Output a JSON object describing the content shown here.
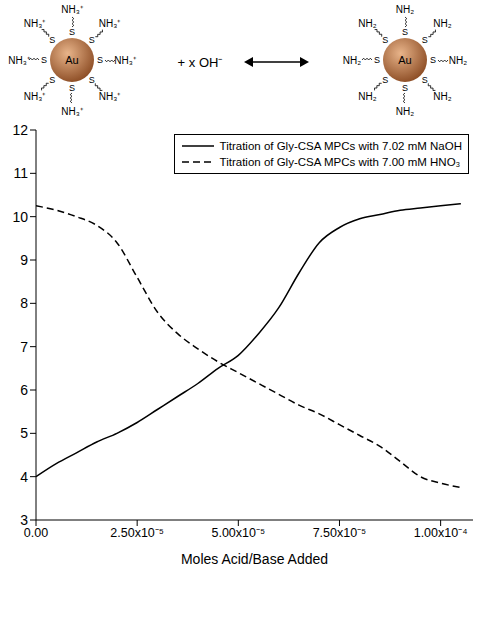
{
  "scheme": {
    "reactant": {
      "core": "Au",
      "anchor": "S",
      "end_group": "NH₃⁺"
    },
    "reagent": "+ x OH⁻",
    "product": {
      "core": "Au",
      "anchor": "S",
      "end_group": "NH₂"
    }
  },
  "chart_data": {
    "type": "line",
    "x": [
      0,
      5e-06,
      1e-05,
      1.5e-05,
      2e-05,
      2.5e-05,
      3e-05,
      3.5e-05,
      4e-05,
      4.5e-05,
      5e-05,
      5.5e-05,
      6e-05,
      6.5e-05,
      7e-05,
      7.5e-05,
      8e-05,
      8.5e-05,
      9e-05,
      9.5e-05,
      0.0001,
      0.000105
    ],
    "series": [
      {
        "name": "Titration of Gly-CSA MPCs with 7.02 mM NaOH",
        "color": "#000000",
        "line_style": "solid",
        "values": [
          4.0,
          4.3,
          4.55,
          4.8,
          5.0,
          5.25,
          5.55,
          5.85,
          6.15,
          6.5,
          6.8,
          7.3,
          7.9,
          8.7,
          9.4,
          9.75,
          9.95,
          10.05,
          10.15,
          10.2,
          10.25,
          10.3
        ]
      },
      {
        "name": "Titration of Gly-CSA MPCs with 7.00 mM HNO₃",
        "color": "#000000",
        "line_style": "dashed",
        "values": [
          10.25,
          10.15,
          10.0,
          9.8,
          9.4,
          8.6,
          7.8,
          7.3,
          6.95,
          6.65,
          6.4,
          6.15,
          5.9,
          5.65,
          5.45,
          5.2,
          4.95,
          4.7,
          4.35,
          4.0,
          3.85,
          3.75
        ]
      }
    ],
    "x_label": "Moles Acid/Base Added",
    "xlim": [
      0,
      0.000108
    ],
    "xticks": [
      {
        "value": 0,
        "label": "0.00"
      },
      {
        "value": 2.5e-05,
        "label": "2.50x10⁻⁵"
      },
      {
        "value": 5e-05,
        "label": "5.00x10⁻⁵"
      },
      {
        "value": 7.5e-05,
        "label": "7.50x10⁻⁵"
      },
      {
        "value": 0.0001,
        "label": "1.00x10⁻⁴"
      }
    ],
    "ylim": [
      3,
      12
    ],
    "yticks": [
      3,
      4,
      5,
      6,
      7,
      8,
      9,
      10,
      11,
      12
    ],
    "grid": false,
    "legend": "upper right"
  }
}
